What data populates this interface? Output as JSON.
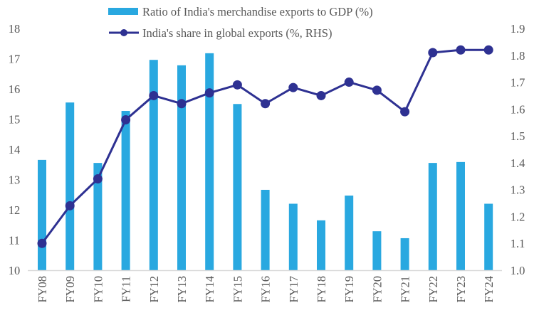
{
  "chart_data": {
    "type": "bar+line",
    "categories": [
      "FY08",
      "FY09",
      "FY10",
      "FY11",
      "FY12",
      "FY13",
      "FY14",
      "FY15",
      "FY16",
      "FY17",
      "FY18",
      "FY19",
      "FY20",
      "FY21",
      "FY22",
      "FY23",
      "FY24"
    ],
    "series": [
      {
        "name": "Ratio of India's merchandise exports to GDP (%)",
        "type": "bar",
        "axis": "left",
        "color": "#29a8e0",
        "values": [
          13.65,
          15.55,
          13.55,
          15.27,
          16.96,
          16.78,
          17.18,
          15.5,
          12.66,
          12.2,
          11.65,
          12.47,
          11.29,
          11.06,
          13.55,
          13.58,
          12.2
        ]
      },
      {
        "name": "India's share in global exports (%, RHS)",
        "type": "line",
        "axis": "right",
        "color": "#2e3192",
        "values": [
          1.1,
          1.24,
          1.34,
          1.56,
          1.65,
          1.62,
          1.66,
          1.69,
          1.62,
          1.68,
          1.65,
          1.7,
          1.67,
          1.59,
          1.81,
          1.82,
          1.82
        ]
      }
    ],
    "y_left": {
      "range": [
        10,
        18
      ],
      "ticks": [
        "10",
        "11",
        "12",
        "13",
        "14",
        "15",
        "16",
        "17",
        "18"
      ]
    },
    "y_right": {
      "range": [
        1.0,
        1.9
      ],
      "ticks": [
        "1.0",
        "1.1",
        "1.2",
        "1.3",
        "1.4",
        "1.5",
        "1.6",
        "1.7",
        "1.8",
        "1.9"
      ]
    },
    "grid": false,
    "legend": "top-center"
  }
}
